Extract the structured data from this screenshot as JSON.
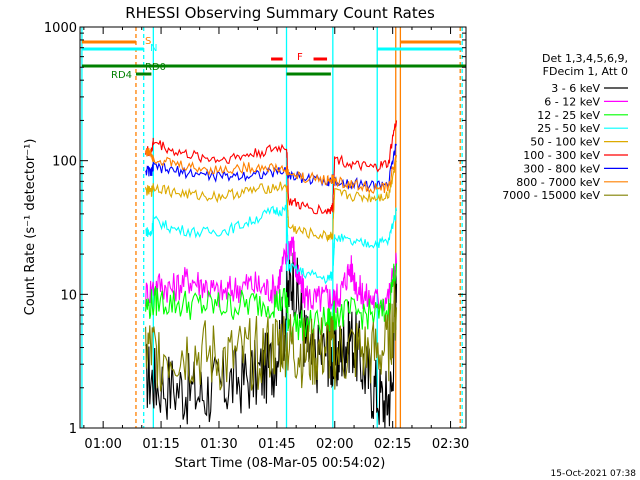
{
  "chart_data": {
    "type": "line",
    "title": "RHESSI Observing Summary Count Rates",
    "xlabel": "Start Time (08-Mar-05 00:54:02)",
    "ylabel": "Count Rate (s⁻¹ detector⁻¹)",
    "x_unit": "minutes after 00:00 UT",
    "xlim": [
      54,
      154
    ],
    "ylim": [
      1,
      1000
    ],
    "yscale": "log",
    "x_ticks": [
      {
        "label": "01:00",
        "value": 60
      },
      {
        "label": "01:15",
        "value": 75
      },
      {
        "label": "01:30",
        "value": 90
      },
      {
        "label": "01:45",
        "value": 105
      },
      {
        "label": "02:00",
        "value": 120
      },
      {
        "label": "02:15",
        "value": 135
      },
      {
        "label": "02:30",
        "value": 150
      }
    ],
    "y_ticks": [
      {
        "label": "1000",
        "value": 1000
      },
      {
        "label": "100",
        "value": 100
      },
      {
        "label": "10",
        "value": 10
      },
      {
        "label": "1",
        "value": 1
      }
    ],
    "legend_header": [
      "Det 1,3,4,5,6,9,",
      "FDecim 1, Att 0"
    ],
    "series": [
      {
        "name": "3 - 6 keV",
        "color": "#000000",
        "x": [
          71,
          74,
          80,
          85,
          90,
          95,
          100,
          104,
          107,
          109,
          112,
          114,
          118,
          120,
          122,
          124,
          127,
          130,
          133,
          135,
          136
        ],
        "y": [
          2.5,
          2.2,
          2.0,
          1.8,
          2.0,
          2.3,
          2.5,
          3.0,
          6.0,
          14,
          5.0,
          3.0,
          4.0,
          3.0,
          4.0,
          5.0,
          3.0,
          2.0,
          1.5,
          2.0,
          12
        ]
      },
      {
        "name": "6 - 12 keV",
        "color": "#ff00ff",
        "x": [
          71,
          74,
          78,
          82,
          86,
          90,
          94,
          98,
          102,
          105,
          107,
          109,
          110,
          112,
          115,
          118,
          120,
          122,
          124,
          126,
          128,
          131,
          134,
          136
        ],
        "y": [
          10,
          12,
          11,
          13,
          12,
          10,
          11,
          12,
          11,
          11,
          18,
          26,
          14,
          10,
          9,
          9.5,
          9,
          11,
          16,
          11,
          9.5,
          9,
          9.5,
          17
        ]
      },
      {
        "name": "12 - 25 keV",
        "color": "#00ff00",
        "x": [
          71,
          74,
          80,
          86,
          92,
          98,
          104,
          107.5,
          108,
          112,
          118,
          119.5,
          120,
          125,
          130,
          134,
          136
        ],
        "y": [
          8,
          9,
          8.5,
          8.3,
          8.2,
          8.5,
          8.7,
          9.0,
          6.2,
          5.8,
          6.2,
          6.5,
          7.0,
          7.3,
          7.0,
          7.5,
          17
        ]
      },
      {
        "name": "25 - 50 keV",
        "color": "#00ffff",
        "x": [
          71,
          72.5,
          73,
          78,
          85,
          92,
          98,
          104,
          107.5,
          108,
          112,
          118,
          119.5,
          120,
          125,
          130,
          134,
          136
        ],
        "y": [
          30,
          28,
          36,
          31,
          29,
          30,
          35,
          42,
          43,
          16,
          14.5,
          13,
          14,
          27,
          24,
          24,
          25,
          42
        ]
      },
      {
        "name": "50 - 100 keV",
        "color": "#ddaa00",
        "x": [
          71,
          72.5,
          73,
          78,
          84,
          90,
          96,
          102,
          107.5,
          108,
          112,
          118,
          119.5,
          120,
          125,
          130,
          134,
          136
        ],
        "y": [
          60,
          58,
          65,
          58,
          55,
          54,
          58,
          62,
          65,
          32,
          29,
          27,
          28,
          57,
          54,
          53,
          55,
          100
        ]
      },
      {
        "name": "100 - 300 keV",
        "color": "#ff0000",
        "x": [
          71,
          72.5,
          73,
          78,
          84,
          90,
          96,
          102,
          107.5,
          108,
          112,
          118,
          119.5,
          120,
          125,
          130,
          134,
          136
        ],
        "y": [
          120,
          115,
          140,
          118,
          108,
          102,
          108,
          118,
          128,
          50,
          45,
          42,
          44,
          105,
          92,
          88,
          95,
          200
        ]
      },
      {
        "name": "300 - 800 keV",
        "color": "#0000ff",
        "x": [
          71,
          72.5,
          73,
          78,
          84,
          90,
          96,
          102,
          107.5,
          108,
          112,
          118,
          119.5,
          120,
          125,
          130,
          134,
          136
        ],
        "y": [
          85,
          82,
          90,
          84,
          80,
          76,
          78,
          80,
          84,
          78,
          74,
          70,
          72,
          70,
          68,
          65,
          68,
          130
        ]
      },
      {
        "name": "800 - 7000 keV",
        "color": "#ff8000",
        "x": [
          71,
          72.5,
          73,
          78,
          84,
          90,
          96,
          102,
          107.5,
          108,
          112,
          118,
          119.5,
          120,
          125,
          130,
          134,
          136
        ],
        "y": [
          118,
          112,
          105,
          95,
          88,
          85,
          88,
          90,
          85,
          80,
          75,
          72,
          72,
          70,
          66,
          62,
          62,
          110
        ]
      },
      {
        "name": "7000 - 15000 keV",
        "color": "#808000",
        "x": [
          71,
          74,
          80,
          86,
          92,
          98,
          104,
          107,
          110,
          114,
          118,
          120,
          125,
          130,
          134,
          136
        ],
        "y": [
          4.0,
          3.5,
          3.8,
          3.5,
          3.2,
          3.5,
          4.0,
          4.5,
          3.8,
          3.5,
          4.0,
          3.5,
          3.8,
          3.5,
          4.0,
          8.0
        ]
      }
    ],
    "vertical_lines": [
      {
        "x": 54.5,
        "color": "#00ffff",
        "style": "solid"
      },
      {
        "x": 68.5,
        "color": "#ff8000",
        "style": "dashed"
      },
      {
        "x": 70.5,
        "color": "#00ffff",
        "style": "dashed"
      },
      {
        "x": 73,
        "color": "#00ffff",
        "style": "solid"
      },
      {
        "x": 107.5,
        "color": "#00ffff",
        "style": "solid"
      },
      {
        "x": 119.5,
        "color": "#00ffff",
        "style": "solid"
      },
      {
        "x": 131,
        "color": "#00ffff",
        "style": "solid"
      },
      {
        "x": 135.8,
        "color": "#ff8000",
        "style": "solid"
      },
      {
        "x": 137,
        "color": "#ff8000",
        "style": "solid"
      },
      {
        "x": 152.5,
        "color": "#ff8000",
        "style": "dashed"
      },
      {
        "x": 153,
        "color": "#00ffff",
        "style": "dashed"
      }
    ],
    "flags": [
      {
        "label": "S",
        "color": "#ff8000",
        "row": 1,
        "segments": [
          [
            54.5,
            68.5
          ],
          [
            137,
            152.5
          ]
        ]
      },
      {
        "label": "N",
        "color": "#00ffff",
        "row": 2,
        "segments": [
          [
            54.5,
            70.5
          ],
          [
            131,
            153
          ]
        ]
      },
      {
        "label": "F",
        "color": "#ff0000",
        "row": 3,
        "segments": [
          [
            103.5,
            106.5
          ],
          [
            114.5,
            118
          ]
        ]
      },
      {
        "label": "RD0",
        "color": "#008000",
        "row": 4,
        "segments": [
          [
            54.5,
            107.5
          ],
          [
            107.5,
            119.5
          ],
          [
            119.5,
            154
          ]
        ]
      },
      {
        "label": "RD4",
        "color": "#008000",
        "row": 5,
        "segments": [
          [
            68.5,
            72.5
          ],
          [
            107.5,
            119
          ]
        ]
      }
    ],
    "timestamp": "15-Oct-2021 07:38"
  }
}
